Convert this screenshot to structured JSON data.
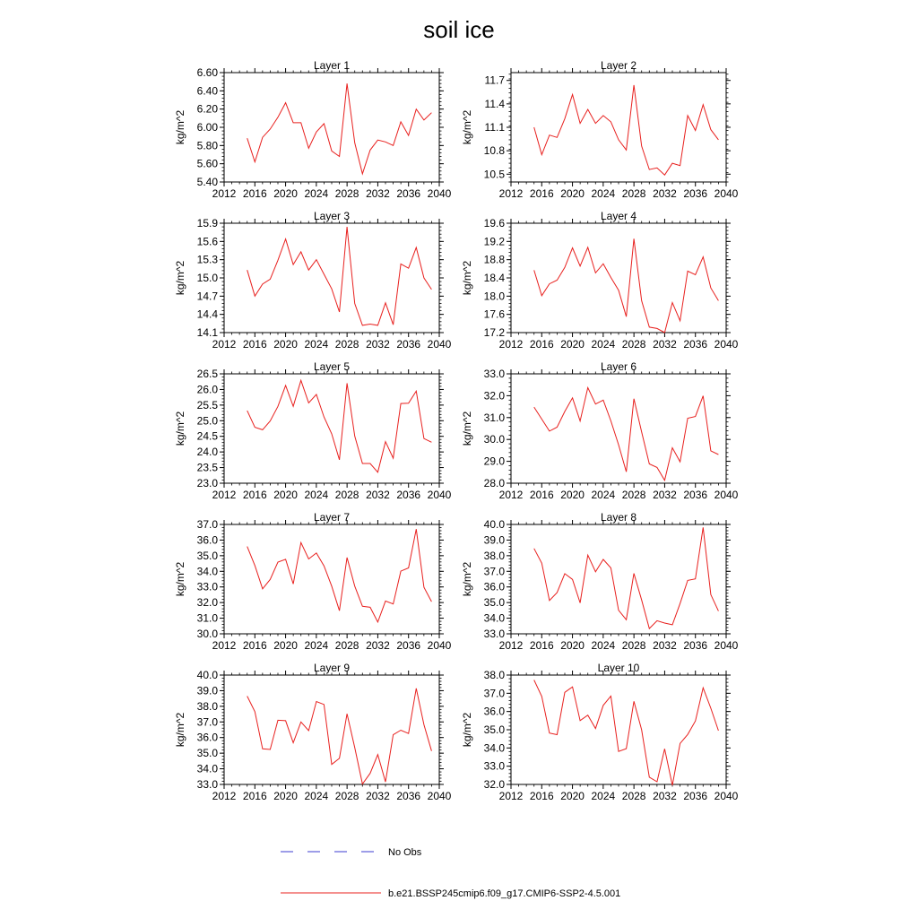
{
  "figure": {
    "title": "soil ice"
  },
  "legend": [
    {
      "label": "No Obs",
      "color": "#3b3bd1",
      "dash": true
    },
    {
      "label": "b.e21.BSSP245cmip6.f09_g17.CMIP6-SSP2-4.5.001",
      "color": "#e8201e",
      "dash": false
    }
  ],
  "chart_data": [
    {
      "type": "line",
      "title": "Layer 1",
      "xlabel": "",
      "ylabel": "kg/m^2",
      "xlim": [
        2012,
        2040
      ],
      "xticks": [
        "2012",
        "2016",
        "2020",
        "2024",
        "2028",
        "2032",
        "2036",
        "2040"
      ],
      "ylim": [
        5.4,
        6.6
      ],
      "yticks": [
        "5.40",
        "5.60",
        "5.80",
        "6.00",
        "6.20",
        "6.40",
        "6.60"
      ],
      "x": [
        2015,
        2016,
        2017,
        2018,
        2019,
        2020,
        2021,
        2022,
        2023,
        2024,
        2025,
        2026,
        2027,
        2028,
        2029,
        2030,
        2031,
        2032,
        2033,
        2034,
        2035,
        2036,
        2037,
        2038,
        2039
      ],
      "series": [
        {
          "color": "#e8201e",
          "values": [
            5.88,
            5.62,
            5.89,
            5.98,
            6.11,
            6.27,
            6.05,
            6.05,
            5.77,
            5.95,
            6.04,
            5.74,
            5.68,
            6.48,
            5.83,
            5.49,
            5.75,
            5.86,
            5.84,
            5.8,
            6.06,
            5.91,
            6.2,
            6.08,
            6.16
          ]
        }
      ]
    },
    {
      "type": "line",
      "title": "Layer 2",
      "xlabel": "",
      "ylabel": "kg/m^2",
      "xlim": [
        2012,
        2040
      ],
      "xticks": [
        "2012",
        "2016",
        "2020",
        "2024",
        "2028",
        "2032",
        "2036",
        "2040"
      ],
      "ylim": [
        10.4,
        11.8
      ],
      "yticks": [
        "10.5",
        "10.8",
        "11.1",
        "11.4",
        "11.7"
      ],
      "x": [
        2015,
        2016,
        2017,
        2018,
        2019,
        2020,
        2021,
        2022,
        2023,
        2024,
        2025,
        2026,
        2027,
        2028,
        2029,
        2030,
        2031,
        2032,
        2033,
        2034,
        2035,
        2036,
        2037,
        2038,
        2039
      ],
      "series": [
        {
          "color": "#e8201e",
          "values": [
            11.1,
            10.75,
            11.0,
            10.97,
            11.21,
            11.52,
            11.15,
            11.33,
            11.15,
            11.25,
            11.17,
            10.94,
            10.81,
            11.64,
            10.86,
            10.56,
            10.58,
            10.49,
            10.64,
            10.61,
            11.25,
            11.06,
            11.39,
            11.07,
            10.94
          ]
        }
      ]
    },
    {
      "type": "line",
      "title": "Layer 3",
      "xlabel": "",
      "ylabel": "kg/m^2",
      "xlim": [
        2012,
        2040
      ],
      "xticks": [
        "2012",
        "2016",
        "2020",
        "2024",
        "2028",
        "2032",
        "2036",
        "2040"
      ],
      "ylim": [
        14.1,
        15.9
      ],
      "yticks": [
        "14.1",
        "14.4",
        "14.7",
        "15.0",
        "15.3",
        "15.6",
        "15.9"
      ],
      "x": [
        2015,
        2016,
        2017,
        2018,
        2019,
        2020,
        2021,
        2022,
        2023,
        2024,
        2025,
        2026,
        2027,
        2028,
        2029,
        2030,
        2031,
        2032,
        2033,
        2034,
        2035,
        2036,
        2037,
        2038,
        2039
      ],
      "series": [
        {
          "color": "#e8201e",
          "values": [
            15.13,
            14.7,
            14.9,
            14.98,
            15.29,
            15.64,
            15.22,
            15.43,
            15.13,
            15.3,
            15.06,
            14.82,
            14.44,
            15.84,
            14.58,
            14.22,
            14.24,
            14.22,
            14.59,
            14.23,
            15.23,
            15.16,
            15.5,
            15.0,
            14.81
          ]
        }
      ]
    },
    {
      "type": "line",
      "title": "Layer 4",
      "xlabel": "",
      "ylabel": "kg/m^2",
      "xlim": [
        2012,
        2040
      ],
      "xticks": [
        "2012",
        "2016",
        "2020",
        "2024",
        "2028",
        "2032",
        "2036",
        "2040"
      ],
      "ylim": [
        17.2,
        19.6
      ],
      "yticks": [
        "17.2",
        "17.6",
        "18.0",
        "18.4",
        "18.8",
        "19.2",
        "19.6"
      ],
      "x": [
        2015,
        2016,
        2017,
        2018,
        2019,
        2020,
        2021,
        2022,
        2023,
        2024,
        2025,
        2026,
        2027,
        2028,
        2029,
        2030,
        2031,
        2032,
        2033,
        2034,
        2035,
        2036,
        2037,
        2038,
        2039
      ],
      "series": [
        {
          "color": "#e8201e",
          "values": [
            18.57,
            18.01,
            18.27,
            18.35,
            18.63,
            19.06,
            18.66,
            19.07,
            18.51,
            18.71,
            18.41,
            18.13,
            17.55,
            19.26,
            17.9,
            17.32,
            17.29,
            17.2,
            17.86,
            17.46,
            18.55,
            18.47,
            18.86,
            18.18,
            17.9
          ]
        }
      ]
    },
    {
      "type": "line",
      "title": "Layer 5",
      "xlabel": "",
      "ylabel": "kg/m^2",
      "xlim": [
        2012,
        2040
      ],
      "xticks": [
        "2012",
        "2016",
        "2020",
        "2024",
        "2028",
        "2032",
        "2036",
        "2040"
      ],
      "ylim": [
        23.0,
        26.5
      ],
      "yticks": [
        "23.0",
        "23.5",
        "24.0",
        "24.5",
        "25.0",
        "25.5",
        "26.0",
        "26.5"
      ],
      "x": [
        2015,
        2016,
        2017,
        2018,
        2019,
        2020,
        2021,
        2022,
        2023,
        2024,
        2025,
        2026,
        2027,
        2028,
        2029,
        2030,
        2031,
        2032,
        2033,
        2034,
        2035,
        2036,
        2037,
        2038,
        2039
      ],
      "series": [
        {
          "color": "#e8201e",
          "values": [
            25.32,
            24.79,
            24.71,
            24.99,
            25.46,
            26.13,
            25.46,
            26.29,
            25.57,
            25.84,
            25.12,
            24.58,
            23.75,
            26.2,
            24.51,
            23.63,
            23.63,
            23.35,
            24.33,
            23.8,
            25.55,
            25.56,
            25.95,
            24.43,
            24.31
          ]
        }
      ]
    },
    {
      "type": "line",
      "title": "Layer 6",
      "xlabel": "",
      "ylabel": "kg/m^2",
      "xlim": [
        2012,
        2040
      ],
      "xticks": [
        "2012",
        "2016",
        "2020",
        "2024",
        "2028",
        "2032",
        "2036",
        "2040"
      ],
      "ylim": [
        28.0,
        33.0
      ],
      "yticks": [
        "28.0",
        "29.0",
        "30.0",
        "31.0",
        "32.0",
        "33.0"
      ],
      "x": [
        2015,
        2016,
        2017,
        2018,
        2019,
        2020,
        2021,
        2022,
        2023,
        2024,
        2025,
        2026,
        2027,
        2028,
        2029,
        2030,
        2031,
        2032,
        2033,
        2034,
        2035,
        2036,
        2037,
        2038,
        2039
      ],
      "series": [
        {
          "color": "#e8201e",
          "values": [
            31.48,
            30.93,
            30.38,
            30.56,
            31.28,
            31.9,
            30.84,
            32.37,
            31.62,
            31.8,
            30.85,
            29.76,
            28.52,
            31.86,
            30.35,
            28.88,
            28.72,
            28.13,
            29.62,
            28.98,
            30.97,
            31.05,
            31.99,
            29.48,
            29.31
          ]
        }
      ]
    },
    {
      "type": "line",
      "title": "Layer 7",
      "xlabel": "",
      "ylabel": "kg/m^2",
      "xlim": [
        2012,
        2040
      ],
      "xticks": [
        "2012",
        "2016",
        "2020",
        "2024",
        "2028",
        "2032",
        "2036",
        "2040"
      ],
      "ylim": [
        30.0,
        37.0
      ],
      "yticks": [
        "30.0",
        "31.0",
        "32.0",
        "33.0",
        "34.0",
        "35.0",
        "36.0",
        "37.0"
      ],
      "x": [
        2015,
        2016,
        2017,
        2018,
        2019,
        2020,
        2021,
        2022,
        2023,
        2024,
        2025,
        2026,
        2027,
        2028,
        2029,
        2030,
        2031,
        2032,
        2033,
        2034,
        2035,
        2036,
        2037,
        2038,
        2039
      ],
      "series": [
        {
          "color": "#e8201e",
          "values": [
            35.59,
            34.37,
            32.88,
            33.48,
            34.59,
            34.77,
            33.19,
            35.84,
            34.79,
            35.17,
            34.35,
            33.05,
            31.48,
            34.88,
            33.05,
            31.76,
            31.7,
            30.75,
            32.1,
            31.91,
            34.01,
            34.22,
            36.7,
            32.98,
            32.06
          ]
        }
      ]
    },
    {
      "type": "line",
      "title": "Layer 8",
      "xlabel": "",
      "ylabel": "kg/m^2",
      "xlim": [
        2012,
        2040
      ],
      "xticks": [
        "2012",
        "2016",
        "2020",
        "2024",
        "2028",
        "2032",
        "2036",
        "2040"
      ],
      "ylim": [
        33.0,
        40.0
      ],
      "yticks": [
        "33.0",
        "34.0",
        "35.0",
        "36.0",
        "37.0",
        "38.0",
        "39.0",
        "40.0"
      ],
      "x": [
        2015,
        2016,
        2017,
        2018,
        2019,
        2020,
        2021,
        2022,
        2023,
        2024,
        2025,
        2026,
        2027,
        2028,
        2029,
        2030,
        2031,
        2032,
        2033,
        2034,
        2035,
        2036,
        2037,
        2038,
        2039
      ],
      "series": [
        {
          "color": "#e8201e",
          "values": [
            38.46,
            37.52,
            35.13,
            35.64,
            36.85,
            36.48,
            34.98,
            38.04,
            36.97,
            37.76,
            37.22,
            34.51,
            33.9,
            36.87,
            35.17,
            33.34,
            33.84,
            33.69,
            33.58,
            34.94,
            36.42,
            36.52,
            39.81,
            35.51,
            34.46
          ]
        }
      ]
    },
    {
      "type": "line",
      "title": "Layer 9",
      "xlabel": "",
      "ylabel": "kg/m^2",
      "xlim": [
        2012,
        2040
      ],
      "xticks": [
        "2012",
        "2016",
        "2020",
        "2024",
        "2028",
        "2032",
        "2036",
        "2040"
      ],
      "ylim": [
        33.0,
        40.0
      ],
      "yticks": [
        "33.0",
        "34.0",
        "35.0",
        "36.0",
        "37.0",
        "38.0",
        "39.0",
        "40.0"
      ],
      "x": [
        2015,
        2016,
        2017,
        2018,
        2019,
        2020,
        2021,
        2022,
        2023,
        2024,
        2025,
        2026,
        2027,
        2028,
        2029,
        2030,
        2031,
        2032,
        2033,
        2034,
        2035,
        2036,
        2037,
        2038,
        2039
      ],
      "series": [
        {
          "color": "#e8201e",
          "values": [
            38.65,
            37.66,
            35.28,
            35.24,
            37.11,
            37.08,
            35.67,
            37.0,
            36.44,
            38.31,
            38.12,
            34.28,
            34.67,
            37.52,
            35.36,
            33.03,
            33.71,
            34.91,
            33.16,
            36.18,
            36.47,
            36.26,
            39.15,
            36.82,
            35.14
          ]
        }
      ]
    },
    {
      "type": "line",
      "title": "Layer 10",
      "xlabel": "",
      "ylabel": "kg/m^2",
      "xlim": [
        2012,
        2040
      ],
      "xticks": [
        "2012",
        "2016",
        "2020",
        "2024",
        "2028",
        "2032",
        "2036",
        "2040"
      ],
      "ylim": [
        32.0,
        38.0
      ],
      "yticks": [
        "32.0",
        "33.0",
        "34.0",
        "35.0",
        "36.0",
        "37.0",
        "38.0"
      ],
      "x": [
        2015,
        2016,
        2017,
        2018,
        2019,
        2020,
        2021,
        2022,
        2023,
        2024,
        2025,
        2026,
        2027,
        2028,
        2029,
        2030,
        2031,
        2032,
        2033,
        2034,
        2035,
        2036,
        2037,
        2038,
        2039
      ],
      "series": [
        {
          "color": "#e8201e",
          "values": [
            37.73,
            36.83,
            34.82,
            34.73,
            37.05,
            37.35,
            35.5,
            35.8,
            35.07,
            36.34,
            36.85,
            33.81,
            33.96,
            36.56,
            35.0,
            32.4,
            32.15,
            33.95,
            31.95,
            34.25,
            34.74,
            35.48,
            37.3,
            36.18,
            34.95
          ]
        }
      ]
    }
  ]
}
